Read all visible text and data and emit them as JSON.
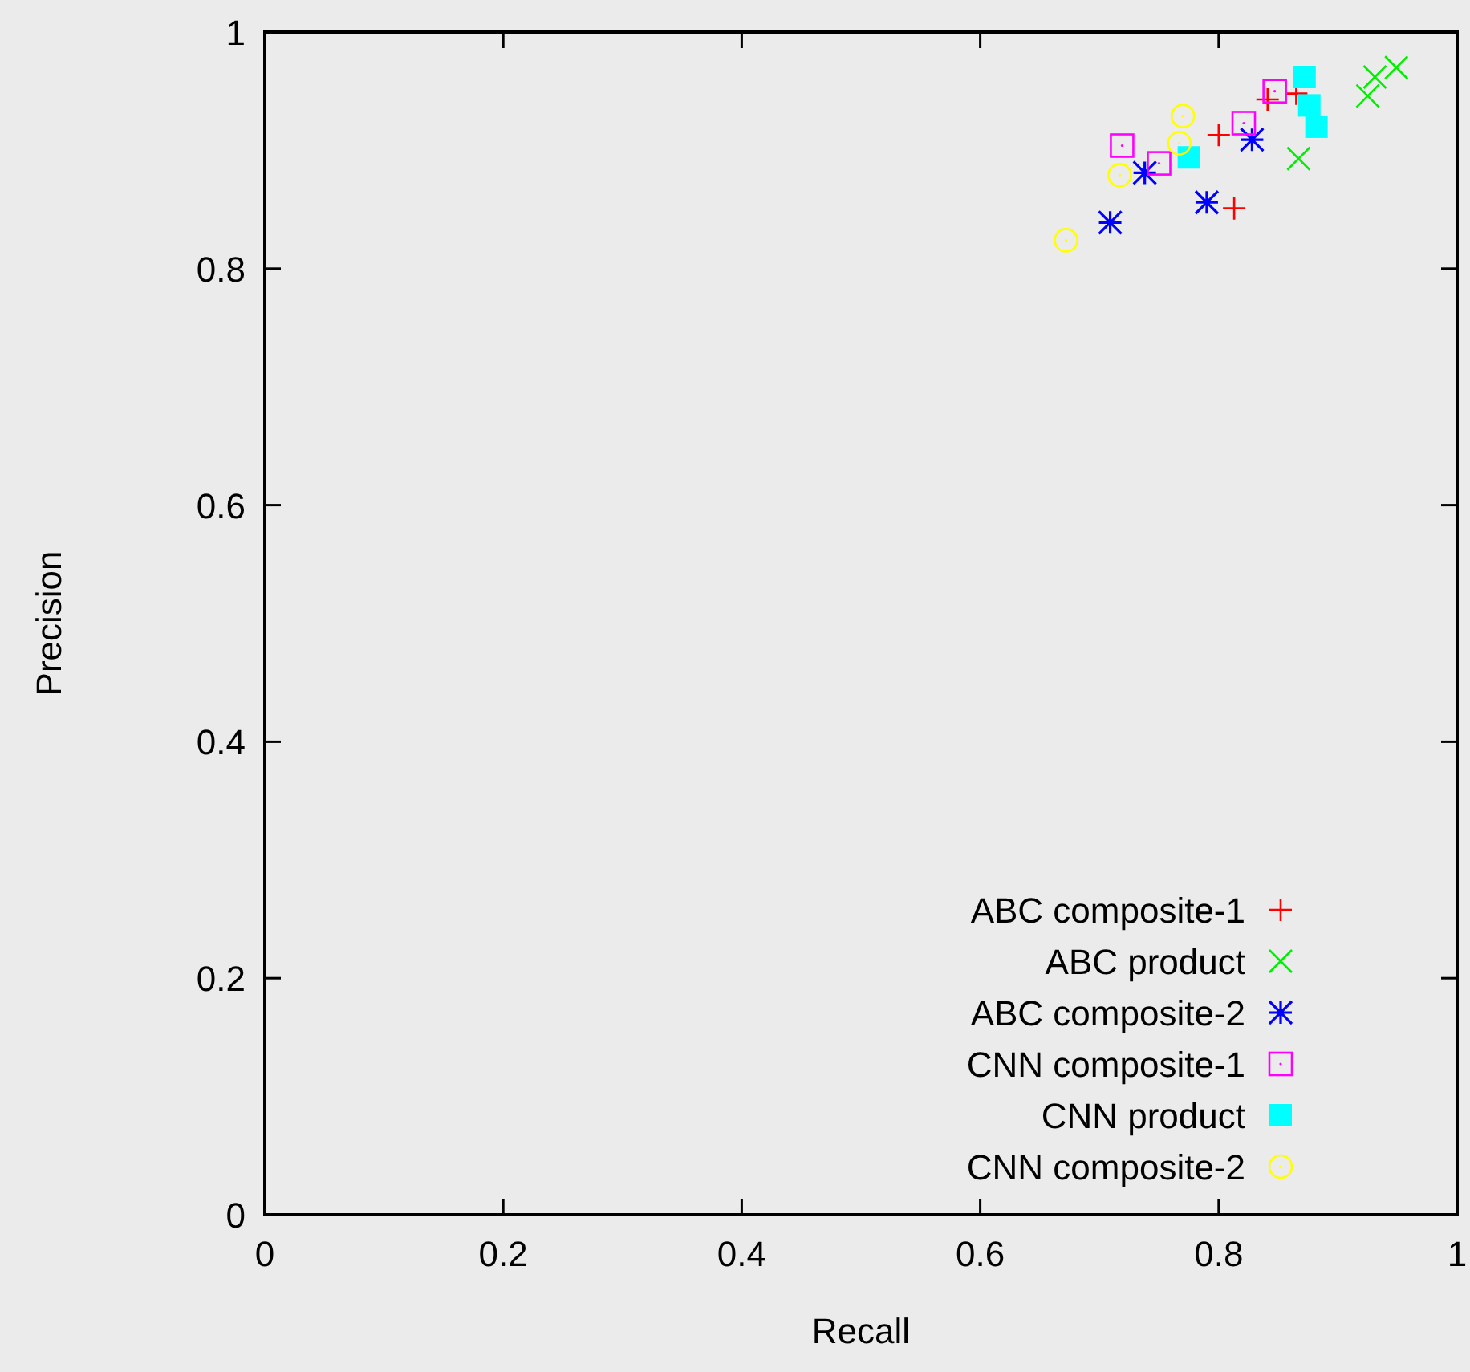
{
  "chart_data": {
    "type": "scatter",
    "xlabel": "Recall",
    "ylabel": "Precision",
    "xlim": [
      0,
      1
    ],
    "ylim": [
      0,
      1
    ],
    "xticks": [
      0,
      0.2,
      0.4,
      0.6,
      0.8,
      1
    ],
    "yticks": [
      0,
      0.2,
      0.4,
      0.6,
      0.8,
      1
    ],
    "grid": false,
    "legend": "bottom right",
    "series": [
      {
        "name": "ABC composite-1",
        "color": "#ff0000",
        "x": [
          0.841,
          0.865,
          0.8,
          0.813
        ],
        "values": [
          0.943,
          0.948,
          0.913,
          0.851
        ]
      },
      {
        "name": "ABC product",
        "color": "#00ee00",
        "x": [
          0.867,
          0.925,
          0.931,
          0.949
        ],
        "values": [
          0.893,
          0.946,
          0.962,
          0.97
        ]
      },
      {
        "name": "ABC composite-2",
        "color": "#0000ff",
        "x": [
          0.709,
          0.738,
          0.79,
          0.828
        ],
        "values": [
          0.839,
          0.881,
          0.856,
          0.909
        ]
      },
      {
        "name": "CNN composite-1",
        "color": "#ff00ff",
        "x": [
          0.719,
          0.75,
          0.821,
          0.847
        ],
        "values": [
          0.904,
          0.889,
          0.923,
          0.95
        ]
      },
      {
        "name": "CNN product",
        "color": "#00ffff",
        "x": [
          0.775,
          0.872,
          0.876,
          0.882
        ],
        "values": [
          0.894,
          0.962,
          0.938,
          0.92
        ]
      },
      {
        "name": "CNN composite-2",
        "color": "#ffff00",
        "x": [
          0.672,
          0.717,
          0.767,
          0.77
        ],
        "values": [
          0.824,
          0.879,
          0.906,
          0.929
        ]
      }
    ]
  }
}
